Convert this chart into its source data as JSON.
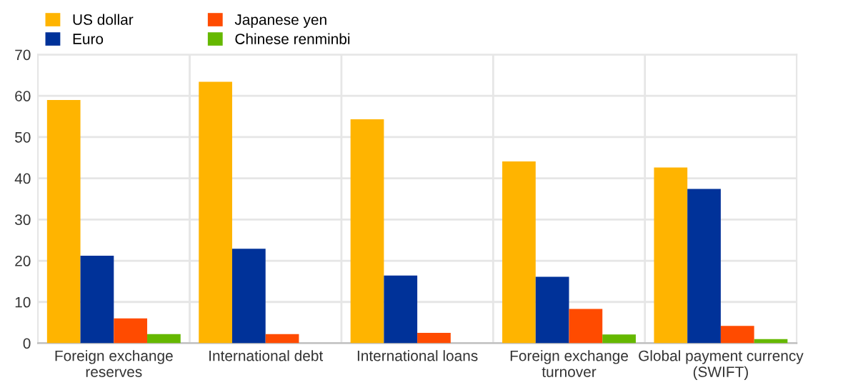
{
  "chart_data": {
    "type": "bar",
    "categories": [
      "Foreign exchange\nreserves",
      "International debt",
      "International loans",
      "Foreign exchange\nturnover",
      "Global payment currency\n(SWIFT)"
    ],
    "series": [
      {
        "name": "US dollar",
        "color": "#ffb400",
        "values": [
          59.0,
          63.4,
          54.3,
          44.1,
          42.6
        ]
      },
      {
        "name": "Euro",
        "color": "#003299",
        "values": [
          21.2,
          22.9,
          16.4,
          16.1,
          37.4
        ]
      },
      {
        "name": "Japanese yen",
        "color": "#ff4b00",
        "values": [
          6.0,
          2.2,
          2.5,
          8.3,
          4.2
        ]
      },
      {
        "name": "Chinese renminbi",
        "color": "#65b800",
        "values": [
          2.2,
          null,
          null,
          2.1,
          1.0
        ]
      }
    ],
    "ylim": [
      0,
      70
    ],
    "yticks": [
      0,
      10,
      20,
      30,
      40,
      50,
      60,
      70
    ],
    "grid": true,
    "legend": "top left"
  }
}
